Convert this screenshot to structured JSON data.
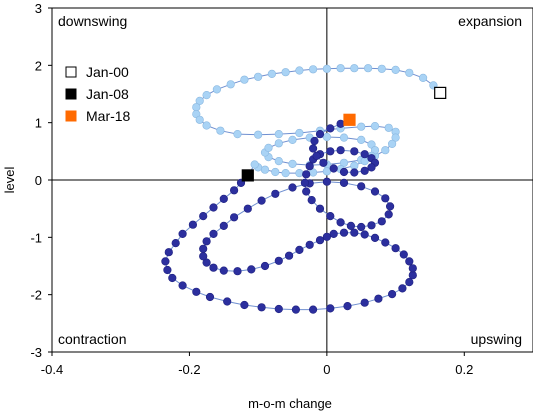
{
  "chart_data": {
    "type": "scatter",
    "xlabel": "m-o-m change",
    "ylabel": "level",
    "xlim": [
      -0.4,
      0.3
    ],
    "ylim": [
      -3,
      3
    ],
    "x_ticks": [
      "-0.4",
      "-0.2",
      "0",
      "0.2"
    ],
    "y_ticks": [
      "3",
      "2",
      "1",
      "0",
      "-1",
      "-2",
      "-3"
    ],
    "x_tick_values": [
      -0.4,
      -0.2,
      0,
      0.2
    ],
    "y_tick_values": [
      3,
      2,
      1,
      0,
      -1,
      -2,
      -3
    ],
    "grid": false,
    "quadrant_labels": {
      "top_left": "downswing",
      "top_right": "expansion",
      "bottom_left": "contraction",
      "bottom_right": "upswing"
    },
    "legend": {
      "placement": "top-left",
      "entries": [
        {
          "label": "Jan-00",
          "fill": "#ffffff",
          "stroke": "#000000"
        },
        {
          "label": "Jan-08",
          "fill": "#000000",
          "stroke": "#000000"
        },
        {
          "label": "Mar-18",
          "fill": "#ff6a00",
          "stroke": "#ff6a00"
        }
      ]
    },
    "colors": {
      "early_series": "#a9d3f5",
      "late_series": "#2c2f9e",
      "line": "#6f8fd0"
    },
    "series": [
      {
        "points": [
          [
            0.165,
            1.52
          ],
          [
            0.155,
            1.65
          ],
          [
            0.14,
            1.78
          ],
          [
            0.12,
            1.87
          ],
          [
            0.1,
            1.92
          ],
          [
            0.08,
            1.94
          ],
          [
            0.06,
            1.95
          ],
          [
            0.04,
            1.95
          ],
          [
            0.02,
            1.95
          ],
          [
            0.0,
            1.94
          ],
          [
            -0.02,
            1.93
          ],
          [
            -0.04,
            1.91
          ],
          [
            -0.06,
            1.88
          ],
          [
            -0.08,
            1.85
          ],
          [
            -0.1,
            1.8
          ],
          [
            -0.12,
            1.75
          ],
          [
            -0.14,
            1.67
          ],
          [
            -0.16,
            1.58
          ],
          [
            -0.175,
            1.48
          ],
          [
            -0.185,
            1.38
          ],
          [
            -0.19,
            1.27
          ],
          [
            -0.19,
            1.15
          ],
          [
            -0.185,
            1.05
          ],
          [
            -0.175,
            0.95
          ],
          [
            -0.155,
            0.86
          ],
          [
            -0.13,
            0.8
          ],
          [
            -0.1,
            0.79
          ],
          [
            -0.07,
            0.8
          ],
          [
            -0.04,
            0.82
          ],
          [
            -0.01,
            0.86
          ],
          [
            0.02,
            0.9
          ],
          [
            0.05,
            0.93
          ],
          [
            0.07,
            0.94
          ],
          [
            0.09,
            0.91
          ],
          [
            0.1,
            0.84
          ],
          [
            0.1,
            0.74
          ],
          [
            0.095,
            0.63
          ],
          [
            0.085,
            0.52
          ],
          [
            0.07,
            0.42
          ],
          [
            0.05,
            0.35
          ],
          [
            0.025,
            0.3
          ],
          [
            0.0,
            0.27
          ],
          [
            -0.025,
            0.26
          ],
          [
            -0.05,
            0.28
          ],
          [
            -0.07,
            0.33
          ],
          [
            -0.085,
            0.4
          ],
          [
            -0.09,
            0.48
          ],
          [
            -0.085,
            0.56
          ],
          [
            -0.07,
            0.64
          ],
          [
            -0.05,
            0.7
          ],
          [
            -0.025,
            0.74
          ],
          [
            0.0,
            0.75
          ],
          [
            0.025,
            0.74
          ],
          [
            0.05,
            0.7
          ],
          [
            0.065,
            0.62
          ],
          [
            0.07,
            0.52
          ],
          [
            0.065,
            0.42
          ],
          [
            0.055,
            0.33
          ],
          [
            0.04,
            0.25
          ],
          [
            0.02,
            0.19
          ],
          [
            0.0,
            0.15
          ],
          [
            -0.02,
            0.13
          ],
          [
            -0.04,
            0.12
          ],
          [
            -0.06,
            0.12
          ],
          [
            -0.075,
            0.14
          ],
          [
            -0.09,
            0.18
          ],
          [
            -0.1,
            0.22
          ],
          [
            -0.105,
            0.27
          ]
        ]
      },
      {
        "points": [
          [
            -0.115,
            0.08
          ],
          [
            -0.125,
            -0.05
          ],
          [
            -0.135,
            -0.18
          ],
          [
            -0.15,
            -0.33
          ],
          [
            -0.165,
            -0.48
          ],
          [
            -0.18,
            -0.63
          ],
          [
            -0.195,
            -0.78
          ],
          [
            -0.21,
            -0.94
          ],
          [
            -0.22,
            -1.1
          ],
          [
            -0.23,
            -1.26
          ],
          [
            -0.235,
            -1.42
          ],
          [
            -0.232,
            -1.57
          ],
          [
            -0.225,
            -1.71
          ],
          [
            -0.21,
            -1.84
          ],
          [
            -0.19,
            -1.95
          ],
          [
            -0.17,
            -2.04
          ],
          [
            -0.145,
            -2.12
          ],
          [
            -0.12,
            -2.18
          ],
          [
            -0.095,
            -2.22
          ],
          [
            -0.07,
            -2.25
          ],
          [
            -0.045,
            -2.26
          ],
          [
            -0.02,
            -2.26
          ],
          [
            0.005,
            -2.24
          ],
          [
            0.03,
            -2.2
          ],
          [
            0.055,
            -2.14
          ],
          [
            0.075,
            -2.07
          ],
          [
            0.095,
            -1.99
          ],
          [
            0.11,
            -1.89
          ],
          [
            0.12,
            -1.78
          ],
          [
            0.125,
            -1.66
          ],
          [
            0.125,
            -1.54
          ],
          [
            0.12,
            -1.42
          ],
          [
            0.112,
            -1.3
          ],
          [
            0.1,
            -1.19
          ],
          [
            0.085,
            -1.09
          ],
          [
            0.07,
            -1.01
          ],
          [
            0.055,
            -0.95
          ],
          [
            0.04,
            -0.92
          ],
          [
            0.025,
            -0.92
          ],
          [
            0.01,
            -0.94
          ],
          [
            0.0,
            -0.99
          ],
          [
            -0.01,
            -1.05
          ],
          [
            -0.025,
            -1.13
          ],
          [
            -0.04,
            -1.22
          ],
          [
            -0.055,
            -1.32
          ],
          [
            -0.07,
            -1.41
          ],
          [
            -0.09,
            -1.5
          ],
          [
            -0.11,
            -1.56
          ],
          [
            -0.13,
            -1.59
          ],
          [
            -0.15,
            -1.58
          ],
          [
            -0.165,
            -1.53
          ],
          [
            -0.175,
            -1.44
          ],
          [
            -0.18,
            -1.33
          ],
          [
            -0.18,
            -1.2
          ],
          [
            -0.175,
            -1.07
          ],
          [
            -0.165,
            -0.94
          ],
          [
            -0.15,
            -0.8
          ],
          [
            -0.135,
            -0.65
          ],
          [
            -0.115,
            -0.5
          ],
          [
            -0.095,
            -0.36
          ],
          [
            -0.075,
            -0.24
          ],
          [
            -0.05,
            -0.13
          ],
          [
            -0.025,
            -0.06
          ],
          [
            0.0,
            -0.03
          ],
          [
            0.025,
            -0.05
          ],
          [
            0.05,
            -0.11
          ],
          [
            0.07,
            -0.2
          ],
          [
            0.085,
            -0.32
          ],
          [
            0.092,
            -0.46
          ],
          [
            0.09,
            -0.6
          ],
          [
            0.08,
            -0.72
          ],
          [
            0.065,
            -0.79
          ],
          [
            0.05,
            -0.82
          ],
          [
            0.035,
            -0.8
          ],
          [
            0.02,
            -0.74
          ],
          [
            0.005,
            -0.63
          ],
          [
            -0.01,
            -0.5
          ],
          [
            -0.022,
            -0.35
          ],
          [
            -0.03,
            -0.2
          ],
          [
            -0.032,
            -0.05
          ],
          [
            -0.03,
            0.1
          ],
          [
            -0.025,
            0.24
          ],
          [
            -0.02,
            0.36
          ],
          [
            -0.01,
            0.45
          ],
          [
            0.005,
            0.5
          ],
          [
            0.02,
            0.52
          ],
          [
            0.04,
            0.5
          ],
          [
            0.055,
            0.45
          ],
          [
            0.065,
            0.38
          ],
          [
            0.07,
            0.3
          ],
          [
            0.065,
            0.22
          ],
          [
            0.055,
            0.16
          ],
          [
            0.04,
            0.13
          ],
          [
            0.025,
            0.14
          ],
          [
            0.01,
            0.2
          ],
          [
            -0.005,
            0.3
          ],
          [
            -0.015,
            0.42
          ],
          [
            -0.02,
            0.55
          ],
          [
            -0.018,
            0.68
          ],
          [
            -0.01,
            0.8
          ],
          [
            0.005,
            0.9
          ],
          [
            0.02,
            0.98
          ],
          [
            0.033,
            1.05
          ]
        ]
      }
    ],
    "highlights": [
      {
        "label": "Jan-00",
        "x": 0.165,
        "y": 1.52
      },
      {
        "label": "Jan-08",
        "x": -0.115,
        "y": 0.08
      },
      {
        "label": "Mar-18",
        "x": 0.033,
        "y": 1.05
      }
    ]
  }
}
